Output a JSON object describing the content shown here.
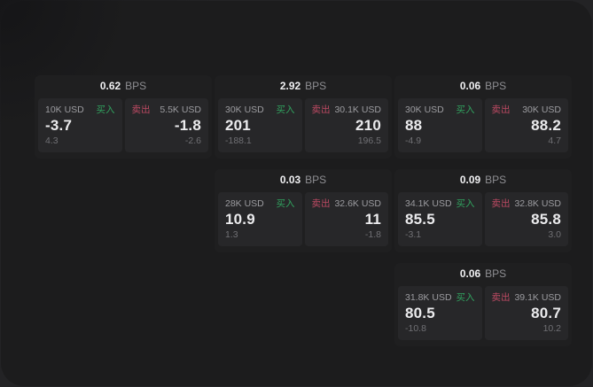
{
  "labels": {
    "buy": "买入",
    "sell": "卖出",
    "bps": "BPS"
  },
  "colors": {
    "buy_green": "#31a35f",
    "sell_red": "#bd4a63",
    "window_bg": "#1c1c1d",
    "card_bg": "#1f1f20",
    "panel_bg": "#272729",
    "primary_text": "#ebebed",
    "muted_text": "#9c9ca0",
    "dim_text": "#707074"
  },
  "cards": [
    {
      "bps": "0.62",
      "buy": {
        "notional": "10K USD",
        "price": "-3.7",
        "delta": "4.3"
      },
      "sell": {
        "notional": "5.5K USD",
        "price": "-1.8",
        "delta": "-2.6"
      }
    },
    {
      "bps": "2.92",
      "buy": {
        "notional": "30K USD",
        "price": "201",
        "delta": "-188.1"
      },
      "sell": {
        "notional": "30.1K USD",
        "price": "210",
        "delta": "196.5"
      }
    },
    {
      "bps": "0.06",
      "buy": {
        "notional": "30K USD",
        "price": "88",
        "delta": "-4.9"
      },
      "sell": {
        "notional": "30K USD",
        "price": "88.2",
        "delta": "4.7"
      }
    },
    {
      "bps": "0.03",
      "buy": {
        "notional": "28K USD",
        "price": "10.9",
        "delta": "1.3"
      },
      "sell": {
        "notional": "32.6K USD",
        "price": "11",
        "delta": "-1.8"
      }
    },
    {
      "bps": "0.09",
      "buy": {
        "notional": "34.1K USD",
        "price": "85.5",
        "delta": "-3.1"
      },
      "sell": {
        "notional": "32.8K USD",
        "price": "85.8",
        "delta": "3.0"
      }
    },
    {
      "bps": "0.06",
      "buy": {
        "notional": "31.8K USD",
        "price": "80.5",
        "delta": "-10.8"
      },
      "sell": {
        "notional": "39.1K USD",
        "price": "80.7",
        "delta": "10.2"
      }
    }
  ]
}
